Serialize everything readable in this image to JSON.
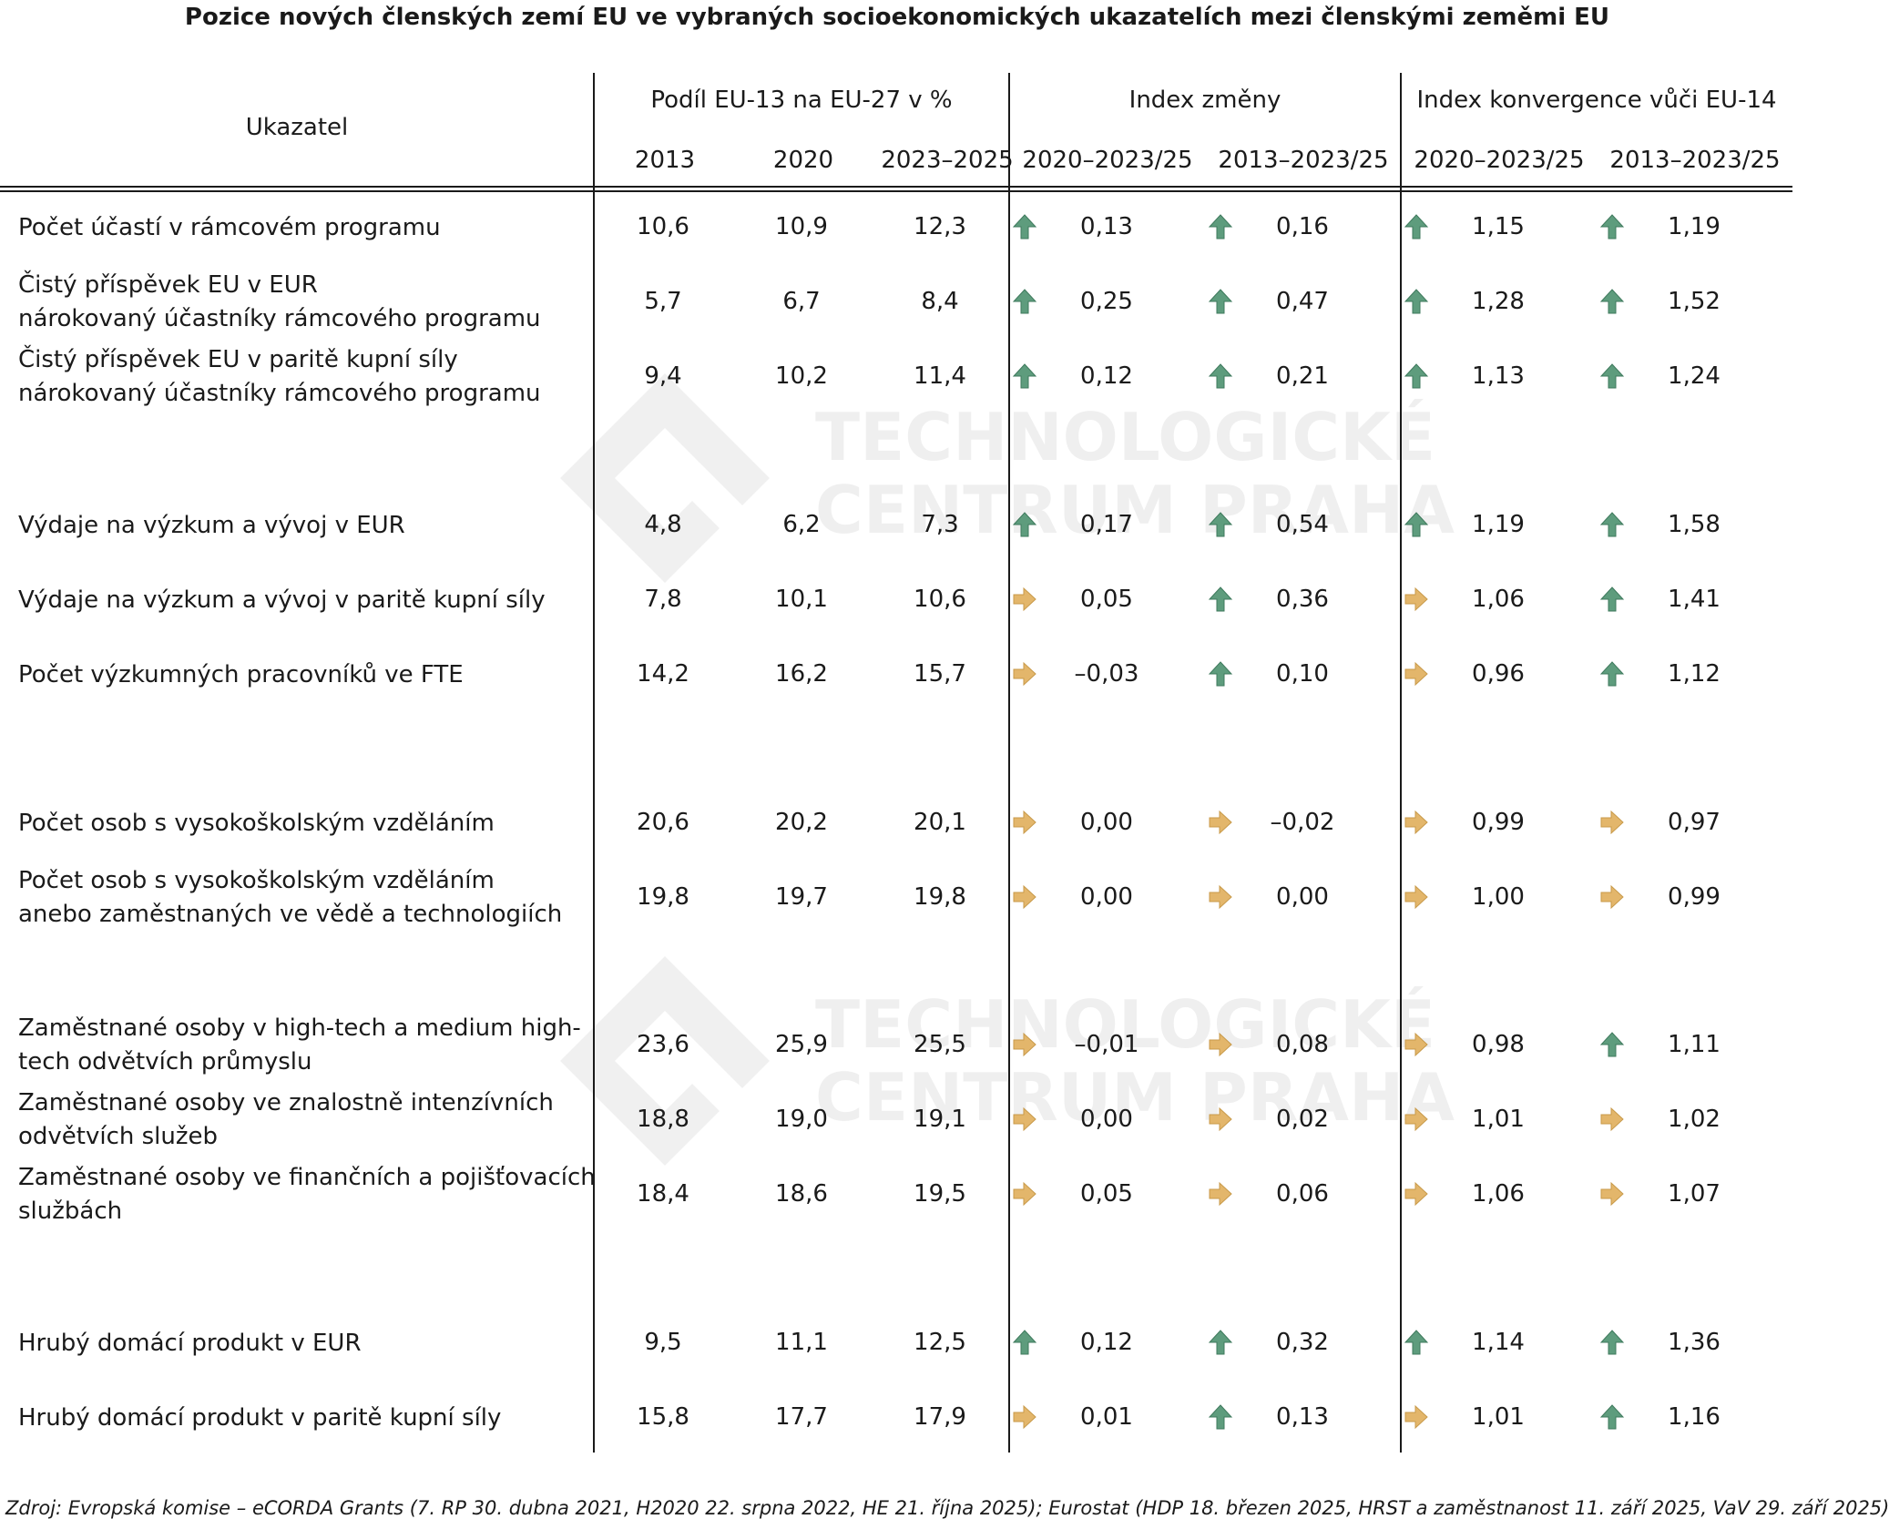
{
  "title": "Pozice nových členských zemí EU ve vybraných socioekonomických ukazatelích mezi členskými zeměmi EU",
  "source": "Zdroj: Evropská komise – eCORDA Grants (7. RP 30. dubna 2021, H2020 22. srpna 2022, HE 21. října 2025); Eurostat (HDP 18. březen 2025, HRST a zaměstnanost 11. září 2025, VaV 29. září 2025)",
  "colors": {
    "up": "#5e9c7d",
    "right": "#e3b66b",
    "text": "#1a1a1a"
  },
  "watermark": {
    "line1": "TECHNOLOGICKÉ",
    "line2": "CENTRUM PRAHA"
  },
  "chart_data": {
    "type": "table",
    "header": {
      "indicator": "Ukazatel",
      "groups": [
        "Podíl EU-13 na EU-27 v %",
        "Index změny",
        "Index konvergence vůči EU-14"
      ],
      "columns": [
        "2013",
        "2020",
        "2023–2025",
        "2020–2023/25",
        "2013–2023/25",
        "2020–2023/25",
        "2013–2023/25"
      ]
    },
    "rows": [
      {
        "label": [
          "Počet účastí v rámcovém programu"
        ],
        "share": [
          "10,6",
          "10,9",
          "12,3"
        ],
        "change": [
          "0,13",
          "0,16"
        ],
        "change_trend": [
          "up",
          "up"
        ],
        "conv": [
          "1,15",
          "1,19"
        ],
        "conv_trend": [
          "up",
          "up"
        ]
      },
      {
        "label": [
          "Čistý příspěvek EU v EUR",
          "nárokovaný účastníky rámcového programu"
        ],
        "share": [
          "5,7",
          "6,7",
          "8,4"
        ],
        "change": [
          "0,25",
          "0,47"
        ],
        "change_trend": [
          "up",
          "up"
        ],
        "conv": [
          "1,28",
          "1,52"
        ],
        "conv_trend": [
          "up",
          "up"
        ]
      },
      {
        "label": [
          "Čistý příspěvek EU v paritě kupní síly",
          "nárokovaný účastníky rámcového programu"
        ],
        "share": [
          "9,4",
          "10,2",
          "11,4"
        ],
        "change": [
          "0,12",
          "0,21"
        ],
        "change_trend": [
          "up",
          "up"
        ],
        "conv": [
          "1,13",
          "1,24"
        ],
        "conv_trend": [
          "up",
          "up"
        ]
      },
      {
        "label": [
          "Výdaje na výzkum a vývoj v EUR"
        ],
        "share": [
          "4,8",
          "6,2",
          "7,3"
        ],
        "change": [
          "0,17",
          "0,54"
        ],
        "change_trend": [
          "up",
          "up"
        ],
        "conv": [
          "1,19",
          "1,58"
        ],
        "conv_trend": [
          "up",
          "up"
        ]
      },
      {
        "label": [
          "Výdaje na výzkum a vývoj v paritě kupní síly"
        ],
        "share": [
          "7,8",
          "10,1",
          "10,6"
        ],
        "change": [
          "0,05",
          "0,36"
        ],
        "change_trend": [
          "right",
          "up"
        ],
        "conv": [
          "1,06",
          "1,41"
        ],
        "conv_trend": [
          "right",
          "up"
        ]
      },
      {
        "label": [
          "Počet výzkumných pracovníků ve FTE"
        ],
        "share": [
          "14,2",
          "16,2",
          "15,7"
        ],
        "change": [
          "–0,03",
          "0,10"
        ],
        "change_trend": [
          "right",
          "up"
        ],
        "conv": [
          "0,96",
          "1,12"
        ],
        "conv_trend": [
          "right",
          "up"
        ]
      },
      {
        "label": [
          "Počet osob s vysokoškolským vzděláním"
        ],
        "share": [
          "20,6",
          "20,2",
          "20,1"
        ],
        "change": [
          "0,00",
          "–0,02"
        ],
        "change_trend": [
          "right",
          "right"
        ],
        "conv": [
          "0,99",
          "0,97"
        ],
        "conv_trend": [
          "right",
          "right"
        ]
      },
      {
        "label": [
          "Počet osob s vysokoškolským vzděláním",
          "anebo zaměstnaných ve vědě a technologiích"
        ],
        "share": [
          "19,8",
          "19,7",
          "19,8"
        ],
        "change": [
          "0,00",
          "0,00"
        ],
        "change_trend": [
          "right",
          "right"
        ],
        "conv": [
          "1,00",
          "0,99"
        ],
        "conv_trend": [
          "right",
          "right"
        ]
      },
      {
        "label": [
          "Zaměstnané osoby v high-tech a medium high-",
          "tech odvětvích průmyslu"
        ],
        "share": [
          "23,6",
          "25,9",
          "25,5"
        ],
        "change": [
          "–0,01",
          "0,08"
        ],
        "change_trend": [
          "right",
          "right"
        ],
        "conv": [
          "0,98",
          "1,11"
        ],
        "conv_trend": [
          "right",
          "up"
        ]
      },
      {
        "label": [
          "Zaměstnané osoby ve znalostně intenzívních",
          "odvětvích služeb"
        ],
        "share": [
          "18,8",
          "19,0",
          "19,1"
        ],
        "change": [
          "0,00",
          "0,02"
        ],
        "change_trend": [
          "right",
          "right"
        ],
        "conv": [
          "1,01",
          "1,02"
        ],
        "conv_trend": [
          "right",
          "right"
        ]
      },
      {
        "label": [
          "Zaměstnané osoby ve finančních a pojišťovacích",
          "službách"
        ],
        "share": [
          "18,4",
          "18,6",
          "19,5"
        ],
        "change": [
          "0,05",
          "0,06"
        ],
        "change_trend": [
          "right",
          "right"
        ],
        "conv": [
          "1,06",
          "1,07"
        ],
        "conv_trend": [
          "right",
          "right"
        ]
      },
      {
        "label": [
          "Hrubý domácí produkt v EUR"
        ],
        "share": [
          "9,5",
          "11,1",
          "12,5"
        ],
        "change": [
          "0,12",
          "0,32"
        ],
        "change_trend": [
          "up",
          "up"
        ],
        "conv": [
          "1,14",
          "1,36"
        ],
        "conv_trend": [
          "up",
          "up"
        ]
      },
      {
        "label": [
          "Hrubý domácí produkt v paritě kupní síly"
        ],
        "share": [
          "15,8",
          "17,7",
          "17,9"
        ],
        "change": [
          "0,01",
          "0,13"
        ],
        "change_trend": [
          "right",
          "up"
        ],
        "conv": [
          "1,01",
          "1,16"
        ],
        "conv_trend": [
          "right",
          "up"
        ]
      }
    ]
  }
}
